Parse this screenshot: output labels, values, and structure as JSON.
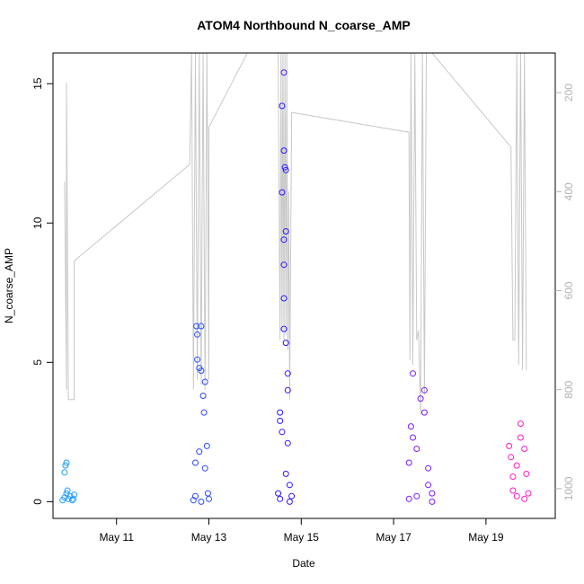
{
  "chart_data": {
    "type": "scatter",
    "title": "ATOM4 Northbound N_coarse_AMP",
    "xlabel": "Date",
    "ylabel": "N_coarse_AMP",
    "xlim": [
      "2021-05-09T15:00",
      "2021-05-20T12:00"
    ],
    "ylim": [
      -0.6,
      16.1
    ],
    "y2lim": [
      1060,
      120
    ],
    "x_ticks": [
      {
        "date": "2021-05-11",
        "label": "May 11"
      },
      {
        "date": "2021-05-13",
        "label": "May 13"
      },
      {
        "date": "2021-05-15",
        "label": "May 15"
      },
      {
        "date": "2021-05-17",
        "label": "May 17"
      },
      {
        "date": "2021-05-19",
        "label": "May 19"
      }
    ],
    "y_ticks": [
      0,
      5,
      10,
      15
    ],
    "y2_ticks": [
      200,
      400,
      600,
      800,
      1000
    ],
    "grid": false,
    "point_style": "open-circle",
    "line_color": "#c8c8c8",
    "series": [
      {
        "color": "#1e9fff",
        "points": [
          [
            "2021-05-09T20:00",
            0.05
          ],
          [
            "2021-05-09T21:00",
            0.15
          ],
          [
            "2021-05-09T22:00",
            0.3
          ],
          [
            "2021-05-09T23:00",
            0.1
          ],
          [
            "2021-05-10T00:00",
            0.2
          ],
          [
            "2021-05-10T01:00",
            0.05
          ],
          [
            "2021-05-09T21:30",
            1.3
          ],
          [
            "2021-05-09T22:00",
            1.4
          ],
          [
            "2021-05-09T21:00",
            1.05
          ],
          [
            "2021-05-09T22:30",
            0.4
          ],
          [
            "2021-05-10T01:30",
            0.1
          ],
          [
            "2021-05-10T02:00",
            0.25
          ]
        ]
      },
      {
        "color": "#2a4bff",
        "points": [
          [
            "2021-05-12T16:00",
            0.05
          ],
          [
            "2021-05-12T17:00",
            1.4
          ],
          [
            "2021-05-12T17:30",
            6.3
          ],
          [
            "2021-05-12T18:00",
            6.0
          ],
          [
            "2021-05-12T18:00",
            5.1
          ],
          [
            "2021-05-12T19:00",
            4.8
          ],
          [
            "2021-05-12T20:00",
            6.3
          ],
          [
            "2021-05-12T20:00",
            4.7
          ],
          [
            "2021-05-12T21:00",
            3.8
          ],
          [
            "2021-05-12T21:30",
            3.2
          ],
          [
            "2021-05-12T22:00",
            4.3
          ],
          [
            "2021-05-12T23:00",
            2.0
          ],
          [
            "2021-05-12T19:00",
            1.8
          ],
          [
            "2021-05-12T22:00",
            1.2
          ],
          [
            "2021-05-12T23:30",
            0.3
          ],
          [
            "2021-05-13T00:00",
            0.1
          ],
          [
            "2021-05-12T17:00",
            0.2
          ],
          [
            "2021-05-12T20:00",
            0.0
          ]
        ]
      },
      {
        "color": "#2c18ff",
        "points": [
          [
            "2021-05-14T12:00",
            0.3
          ],
          [
            "2021-05-14T13:00",
            2.9
          ],
          [
            "2021-05-14T14:00",
            14.2
          ],
          [
            "2021-05-14T14:00",
            11.1
          ],
          [
            "2021-05-14T15:00",
            15.4
          ],
          [
            "2021-05-14T15:00",
            12.6
          ],
          [
            "2021-05-14T15:30",
            12.0
          ],
          [
            "2021-05-14T16:00",
            11.9
          ],
          [
            "2021-05-14T16:00",
            9.7
          ],
          [
            "2021-05-14T15:00",
            9.4
          ],
          [
            "2021-05-14T15:00",
            8.5
          ],
          [
            "2021-05-14T15:00",
            7.3
          ],
          [
            "2021-05-14T15:00",
            6.2
          ],
          [
            "2021-05-14T16:00",
            5.7
          ],
          [
            "2021-05-14T17:00",
            4.6
          ],
          [
            "2021-05-14T17:00",
            4.0
          ],
          [
            "2021-05-14T13:00",
            3.2
          ],
          [
            "2021-05-14T14:00",
            2.5
          ],
          [
            "2021-05-14T17:00",
            2.1
          ],
          [
            "2021-05-14T16:00",
            1.0
          ],
          [
            "2021-05-14T18:00",
            0.6
          ],
          [
            "2021-05-14T19:00",
            0.2
          ],
          [
            "2021-05-14T13:00",
            0.1
          ],
          [
            "2021-05-14T18:00",
            0.0
          ]
        ]
      },
      {
        "color": "#7a1aff",
        "points": [
          [
            "2021-05-17T10:00",
            4.6
          ],
          [
            "2021-05-17T09:00",
            2.7
          ],
          [
            "2021-05-17T10:00",
            2.3
          ],
          [
            "2021-05-17T08:00",
            1.4
          ],
          [
            "2021-05-17T12:00",
            1.9
          ],
          [
            "2021-05-17T14:00",
            3.7
          ],
          [
            "2021-05-17T16:00",
            4.0
          ],
          [
            "2021-05-17T16:00",
            3.2
          ],
          [
            "2021-05-17T18:00",
            1.2
          ],
          [
            "2021-05-17T18:00",
            0.6
          ],
          [
            "2021-05-17T20:00",
            0.3
          ],
          [
            "2021-05-17T08:00",
            0.1
          ],
          [
            "2021-05-17T12:00",
            0.2
          ],
          [
            "2021-05-17T20:00",
            0.0
          ]
        ]
      },
      {
        "color": "#ff1ac6",
        "points": [
          [
            "2021-05-19T12:00",
            2.0
          ],
          [
            "2021-05-19T13:00",
            1.6
          ],
          [
            "2021-05-19T14:00",
            0.9
          ],
          [
            "2021-05-19T16:00",
            1.3
          ],
          [
            "2021-05-19T18:00",
            2.8
          ],
          [
            "2021-05-19T18:00",
            2.3
          ],
          [
            "2021-05-19T20:00",
            1.9
          ],
          [
            "2021-05-19T21:00",
            1.0
          ],
          [
            "2021-05-19T14:00",
            0.4
          ],
          [
            "2021-05-19T16:00",
            0.2
          ],
          [
            "2021-05-19T20:00",
            0.1
          ],
          [
            "2021-05-19T22:00",
            0.3
          ]
        ]
      }
    ],
    "line_segments": [
      [
        "2021-05-09T21:00",
        380
      ],
      [
        "2021-05-09T22:00",
        800
      ],
      [
        "2021-05-09T22:00",
        180
      ],
      [
        "2021-05-09T23:00",
        820
      ],
      [
        "2021-05-10T02:00",
        820
      ],
      [
        "2021-05-10T02:00",
        540
      ],
      [
        "2021-05-12T14:00",
        345
      ],
      [
        "2021-05-12T15:00",
        120
      ],
      [
        "2021-05-12T16:00",
        800
      ],
      [
        "2021-05-12T17:00",
        120
      ],
      [
        "2021-05-12T18:00",
        780
      ],
      [
        "2021-05-12T19:00",
        120
      ],
      [
        "2021-05-12T20:00",
        790
      ],
      [
        "2021-05-12T21:00",
        120
      ],
      [
        "2021-05-12T22:00",
        800
      ],
      [
        "2021-05-12T23:00",
        120
      ],
      [
        "2021-05-13T00:00",
        780
      ],
      [
        "2021-05-13T00:00",
        270
      ],
      [
        "2021-05-13T20:00",
        120
      ],
      [
        "2021-05-14T12:00",
        120
      ],
      [
        "2021-05-14T13:00",
        700
      ],
      [
        "2021-05-14T13:30",
        120
      ],
      [
        "2021-05-14T14:00",
        680
      ],
      [
        "2021-05-14T14:30",
        120
      ],
      [
        "2021-05-14T15:00",
        700
      ],
      [
        "2021-05-14T15:30",
        120
      ],
      [
        "2021-05-14T16:00",
        690
      ],
      [
        "2021-05-14T16:30",
        120
      ],
      [
        "2021-05-14T17:00",
        720
      ],
      [
        "2021-05-14T17:30",
        400
      ],
      [
        "2021-05-14T18:00",
        820
      ],
      [
        "2021-05-14T19:00",
        240
      ],
      [
        "2021-05-17T08:00",
        280
      ],
      [
        "2021-05-17T08:30",
        740
      ],
      [
        "2021-05-17T09:00",
        120
      ],
      [
        "2021-05-17T10:00",
        750
      ],
      [
        "2021-05-17T11:00",
        120
      ],
      [
        "2021-05-17T12:00",
        700
      ],
      [
        "2021-05-17T13:00",
        680
      ],
      [
        "2021-05-17T14:00",
        850
      ],
      [
        "2021-05-17T15:00",
        120
      ],
      [
        "2021-05-17T16:00",
        810
      ],
      [
        "2021-05-17T17:00",
        120
      ],
      [
        "2021-05-17T20:00",
        120
      ],
      [
        "2021-05-19T13:00",
        310
      ],
      [
        "2021-05-19T14:00",
        700
      ],
      [
        "2021-05-19T15:00",
        700
      ],
      [
        "2021-05-19T16:00",
        120
      ],
      [
        "2021-05-19T17:00",
        750
      ],
      [
        "2021-05-19T18:00",
        120
      ],
      [
        "2021-05-19T19:00",
        760
      ],
      [
        "2021-05-19T20:00",
        120
      ],
      [
        "2021-05-19T21:00",
        760
      ]
    ]
  }
}
